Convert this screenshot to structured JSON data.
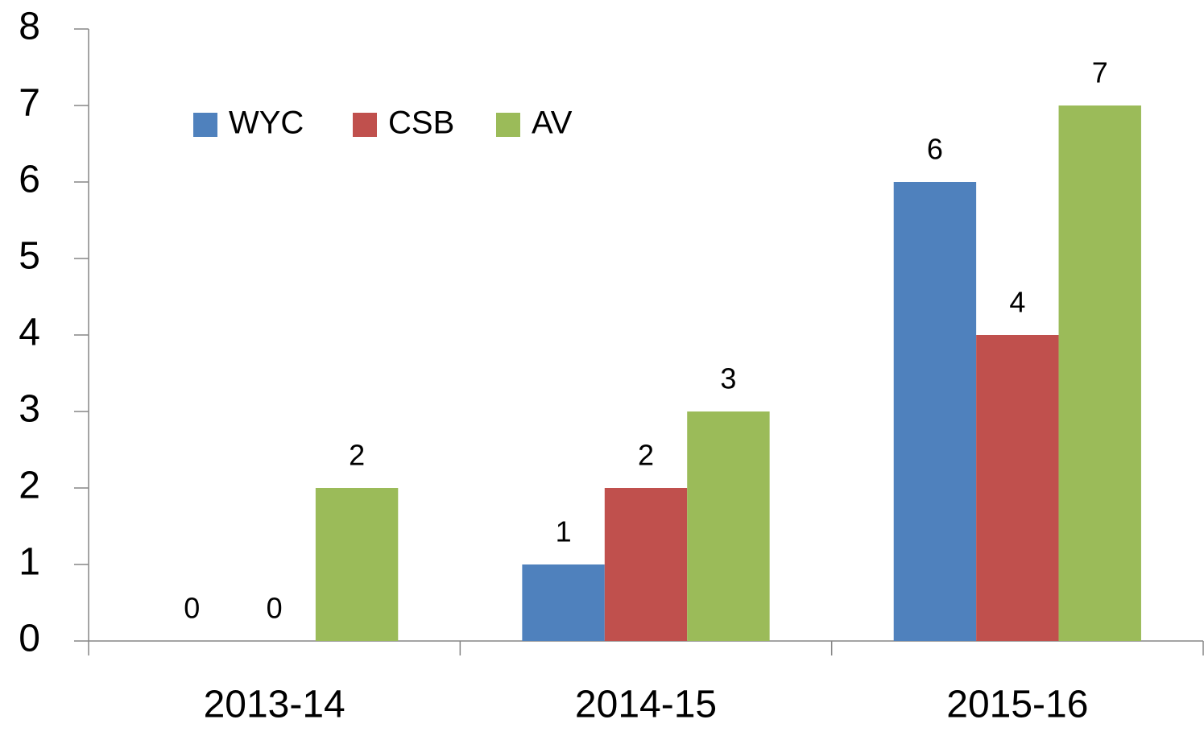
{
  "chart_data": {
    "type": "bar",
    "categories": [
      "2013-14",
      "2014-15",
      "2015-16"
    ],
    "series": [
      {
        "name": "WYC",
        "color": "#4f81bd",
        "values": [
          0,
          1,
          6
        ]
      },
      {
        "name": "CSB",
        "color": "#c0504d",
        "values": [
          0,
          2,
          4
        ]
      },
      {
        "name": "AV",
        "color": "#9bbb59",
        "values": [
          2,
          3,
          7
        ]
      }
    ],
    "ylim": [
      0,
      8
    ],
    "yticks": [
      0,
      1,
      2,
      3,
      4,
      5,
      6,
      7,
      8
    ],
    "legend": "top-left",
    "grid": false
  }
}
